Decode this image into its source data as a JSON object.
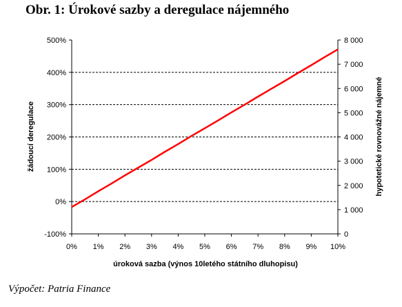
{
  "figure": {
    "title": "Obr. 1: Úrokové sazby a deregulace nájemného",
    "source": "Výpočet: Patria Finance"
  },
  "colors": {
    "series_line": "#ff0000",
    "gridline": "#000000",
    "axis": "#000000",
    "background": "#ffffff"
  },
  "chart_data": {
    "type": "line",
    "title": "",
    "xlabel": "úroková sazba (výnos 10letého státního dluhopisu)",
    "ylabel": "žádoucí deregulace",
    "y2label": "hypotetické rovnovážné nájemné",
    "x_ticks": [
      "0%",
      "1%",
      "2%",
      "3%",
      "4%",
      "5%",
      "6%",
      "7%",
      "8%",
      "9%",
      "10%"
    ],
    "y_ticks": [
      "-100%",
      "0%",
      "100%",
      "200%",
      "300%",
      "400%",
      "500%"
    ],
    "y2_ticks": [
      "0",
      "1 000",
      "2 000",
      "3 000",
      "4 000",
      "5 000",
      "6 000",
      "7 000",
      "8 000"
    ],
    "xlim": [
      0,
      10
    ],
    "ylim": [
      -100,
      500
    ],
    "y2lim": [
      0,
      8000
    ],
    "grid": "horizontal dashed",
    "legend": "none",
    "series": [
      {
        "x": [
          0,
          0.5,
          1,
          1.5,
          2,
          2.5,
          3,
          3.5,
          4,
          4.5,
          5,
          5.5,
          6,
          6.5,
          7,
          7.5,
          8,
          8.5,
          9,
          9.5,
          10
        ],
        "y": [
          -17,
          7,
          32,
          56,
          81,
          105,
          129,
          154,
          178,
          203,
          227,
          251,
          276,
          300,
          325,
          349,
          373,
          398,
          422,
          447,
          471
        ]
      }
    ]
  }
}
